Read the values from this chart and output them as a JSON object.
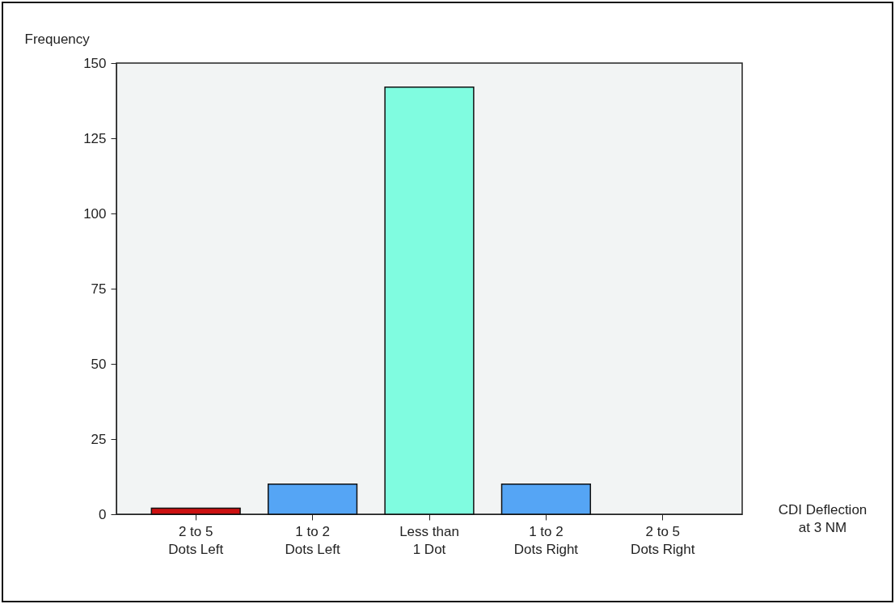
{
  "chart_data": {
    "type": "bar",
    "categories": [
      "2 to 5\nDots Left",
      "1 to 2\nDots Left",
      "Less than\n1 Dot",
      "1 to 2\nDots Right",
      "2 to 5\nDots Right"
    ],
    "values": [
      2,
      10,
      142,
      10,
      0
    ],
    "colors": [
      "#cc1111",
      "#55a5f5",
      "#80fce0",
      "#55a5f5",
      "#55a5f5"
    ],
    "xlabel": "CDI Deflection\nat 3 NM",
    "ylabel": "Frequency",
    "ylim": [
      0,
      150
    ],
    "yticks": [
      0,
      25,
      50,
      75,
      100,
      125,
      150
    ],
    "grid": false
  }
}
